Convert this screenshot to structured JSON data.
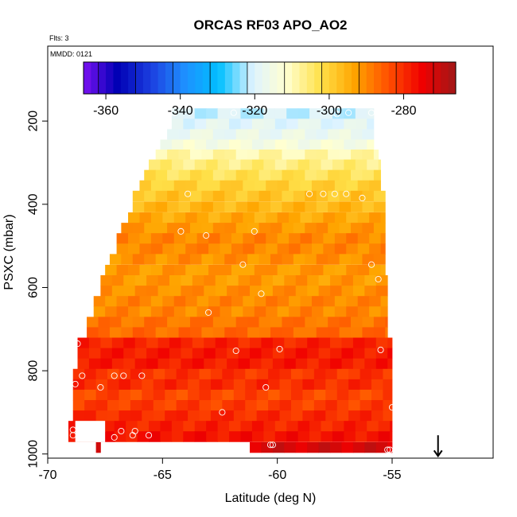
{
  "chart_data": {
    "type": "heatmap",
    "title": "ORCAS RF03 APO_AO2",
    "xlabel": "Latitude (deg N)",
    "ylabel": "PSXC (mbar)",
    "xlim": [
      -70,
      -50.6
    ],
    "ylim": [
      1010,
      20
    ],
    "x_ticks": [
      -70,
      -65,
      -60,
      -55
    ],
    "x_tick_labels": [
      "-70",
      "-65",
      "-60",
      "-55"
    ],
    "y_ticks": [
      200,
      400,
      600,
      800,
      1000
    ],
    "y_tick_labels": [
      "200",
      "400",
      "600",
      "800",
      "1000"
    ],
    "flights_note": "Flts: 3",
    "date_note": "MMDD: 0121",
    "colorbar": {
      "min": -366,
      "max": -266,
      "ticks": [
        -360,
        -340,
        -320,
        -300,
        -280
      ],
      "tick_labels": [
        "-360",
        "-340",
        "-320",
        "-300",
        "-280"
      ],
      "stops": [
        "#7a12f2",
        "#0000b4",
        "#1c3fe0",
        "#1e90ff",
        "#00bfff",
        "#dff3ff",
        "#ffffd0",
        "#ffe14a",
        "#ffa500",
        "#ff5000",
        "#f00000",
        "#a01818"
      ]
    },
    "profile_rows": [
      {
        "p": 182,
        "lat_min": -64.6,
        "lat_max": -55.8,
        "value": -321
      },
      {
        "p": 207,
        "lat_min": -64.6,
        "lat_max": -55.8,
        "value": -319
      },
      {
        "p": 232,
        "lat_min": -64.8,
        "lat_max": -55.8,
        "value": -317
      },
      {
        "p": 257,
        "lat_min": -65.1,
        "lat_max": -55.8,
        "value": -314
      },
      {
        "p": 281,
        "lat_min": -65.3,
        "lat_max": -55.6,
        "value": -309
      },
      {
        "p": 305,
        "lat_min": -65.6,
        "lat_max": -55.5,
        "value": -306
      },
      {
        "p": 330,
        "lat_min": -65.8,
        "lat_max": -55.5,
        "value": -303
      },
      {
        "p": 355,
        "lat_min": -66.0,
        "lat_max": -55.5,
        "value": -300
      },
      {
        "p": 380,
        "lat_min": -66.3,
        "lat_max": -55.3,
        "value": -298
      },
      {
        "p": 406,
        "lat_min": -66.3,
        "lat_max": -55.3,
        "value": -296
      },
      {
        "p": 432,
        "lat_min": -66.5,
        "lat_max": -55.3,
        "value": -294
      },
      {
        "p": 457,
        "lat_min": -66.8,
        "lat_max": -55.3,
        "value": -292
      },
      {
        "p": 482,
        "lat_min": -67.0,
        "lat_max": -55.3,
        "value": -290
      },
      {
        "p": 507,
        "lat_min": -67.0,
        "lat_max": -55.3,
        "value": -290
      },
      {
        "p": 532,
        "lat_min": -67.3,
        "lat_max": -55.3,
        "value": -291
      },
      {
        "p": 558,
        "lat_min": -67.5,
        "lat_max": -55.3,
        "value": -292
      },
      {
        "p": 583,
        "lat_min": -67.7,
        "lat_max": -55.2,
        "value": -292
      },
      {
        "p": 608,
        "lat_min": -67.7,
        "lat_max": -55.2,
        "value": -291
      },
      {
        "p": 633,
        "lat_min": -68.0,
        "lat_max": -55.2,
        "value": -290
      },
      {
        "p": 658,
        "lat_min": -68.0,
        "lat_max": -55.2,
        "value": -290
      },
      {
        "p": 683,
        "lat_min": -68.3,
        "lat_max": -55.2,
        "value": -288
      },
      {
        "p": 708,
        "lat_min": -68.3,
        "lat_max": -55.2,
        "value": -287
      },
      {
        "p": 733,
        "lat_min": -68.7,
        "lat_max": -55.0,
        "value": -279
      },
      {
        "p": 758,
        "lat_min": -68.7,
        "lat_max": -55.0,
        "value": -278
      },
      {
        "p": 783,
        "lat_min": -68.7,
        "lat_max": -55.0,
        "value": -278
      },
      {
        "p": 808,
        "lat_min": -68.9,
        "lat_max": -55.0,
        "value": -281
      },
      {
        "p": 833,
        "lat_min": -68.9,
        "lat_max": -55.0,
        "value": -280
      },
      {
        "p": 858,
        "lat_min": -68.9,
        "lat_max": -55.0,
        "value": -283
      },
      {
        "p": 883,
        "lat_min": -68.9,
        "lat_max": -55.0,
        "value": -282
      },
      {
        "p": 908,
        "lat_min": -68.9,
        "lat_max": -55.0,
        "value": -280
      },
      {
        "p": 933,
        "lat_min": -69.1,
        "lat_max": -55.0,
        "value": -279
      },
      {
        "p": 958,
        "lat_min": -69.1,
        "lat_max": -55.0,
        "value": -277
      },
      {
        "p": 984,
        "lat_min": -61.2,
        "lat_max": -55.0,
        "value": -272
      }
    ],
    "profile_gaps": [
      {
        "p": 933,
        "lat_min": -68.8,
        "lat_max": -67.5
      },
      {
        "p": 958,
        "lat_min": -68.8,
        "lat_max": -67.5
      }
    ],
    "extra_cells": [
      {
        "p": 984,
        "lat_min": -67.9,
        "lat_max": -67.7,
        "value": -272
      }
    ],
    "samples": [
      {
        "lat": -64.5,
        "p": 180
      },
      {
        "lat": -61.9,
        "p": 180
      },
      {
        "lat": -57.5,
        "p": 180
      },
      {
        "lat": -57.4,
        "p": 183
      },
      {
        "lat": -56.9,
        "p": 180
      },
      {
        "lat": -55.9,
        "p": 180
      },
      {
        "lat": -63.9,
        "p": 375
      },
      {
        "lat": -58.6,
        "p": 375
      },
      {
        "lat": -58.0,
        "p": 375
      },
      {
        "lat": -57.5,
        "p": 375
      },
      {
        "lat": -57.0,
        "p": 375
      },
      {
        "lat": -56.3,
        "p": 385
      },
      {
        "lat": -64.2,
        "p": 465
      },
      {
        "lat": -63.1,
        "p": 475
      },
      {
        "lat": -61.0,
        "p": 465
      },
      {
        "lat": -61.5,
        "p": 545
      },
      {
        "lat": -55.9,
        "p": 545
      },
      {
        "lat": -55.6,
        "p": 580
      },
      {
        "lat": -60.7,
        "p": 615
      },
      {
        "lat": -63.0,
        "p": 660
      },
      {
        "lat": -61.8,
        "p": 752
      },
      {
        "lat": -59.9,
        "p": 748
      },
      {
        "lat": -55.5,
        "p": 750
      },
      {
        "lat": -68.7,
        "p": 735
      },
      {
        "lat": -68.8,
        "p": 832
      },
      {
        "lat": -68.5,
        "p": 812
      },
      {
        "lat": -67.7,
        "p": 840
      },
      {
        "lat": -67.1,
        "p": 812
      },
      {
        "lat": -66.7,
        "p": 812
      },
      {
        "lat": -65.9,
        "p": 812
      },
      {
        "lat": -60.5,
        "p": 840
      },
      {
        "lat": -62.4,
        "p": 900
      },
      {
        "lat": -55.0,
        "p": 888
      },
      {
        "lat": -68.9,
        "p": 942
      },
      {
        "lat": -68.9,
        "p": 955
      },
      {
        "lat": -67.8,
        "p": 960
      },
      {
        "lat": -67.1,
        "p": 960
      },
      {
        "lat": -66.8,
        "p": 945
      },
      {
        "lat": -66.3,
        "p": 955
      },
      {
        "lat": -66.2,
        "p": 945
      },
      {
        "lat": -65.6,
        "p": 955
      },
      {
        "lat": -60.3,
        "p": 978
      },
      {
        "lat": -60.2,
        "p": 978
      },
      {
        "lat": -55.2,
        "p": 990
      },
      {
        "lat": -55.1,
        "p": 990
      }
    ],
    "arrow_marker": {
      "lat": -53.0,
      "p_from": 955,
      "p_to": 1005
    }
  }
}
